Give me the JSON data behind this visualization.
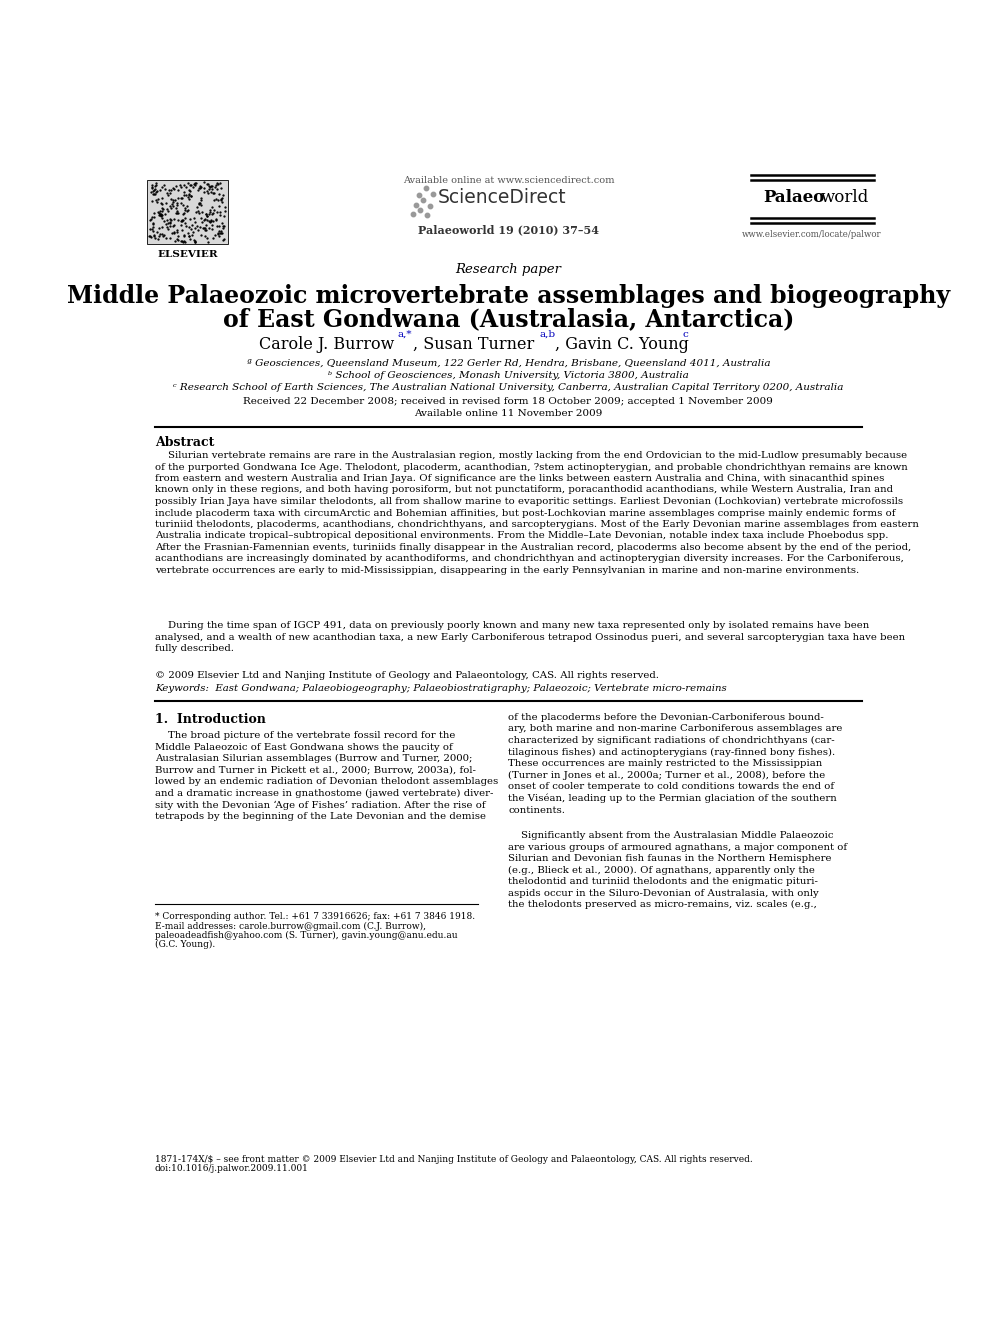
{
  "bg_color": "#ffffff",
  "available_online": "Available online at www.sciencedirect.com",
  "journal_info": "Palaeoworld 19 (2010) 37–54",
  "website": "www.elsevier.com/locate/palwor",
  "elsevier_text": "ELSEVIER",
  "paper_type": "Research paper",
  "title_line1": "Middle Palaeozoic microvertebrate assemblages and biogeography",
  "title_line2": "of East Gondwana (Australasia, Antarctica)",
  "author1": "Carole J. Burrow",
  "author1_sup": "a,*",
  "author2": ", Susan Turner",
  "author2_sup": "a,b",
  "author3": ", Gavin C. Young",
  "author3_sup": "c",
  "affil_a": "ª Geosciences, Queensland Museum, 122 Gerler Rd, Hendra, Brisbane, Queensland 4011, Australia",
  "affil_b": "ᵇ School of Geosciences, Monash University, Victoria 3800, Australia",
  "affil_c": "ᶜ Research School of Earth Sciences, The Australian National University, Canberra, Australian Capital Territory 0200, Australia",
  "received": "Received 22 December 2008; received in revised form 18 October 2009; accepted 1 November 2009",
  "available": "Available online 11 November 2009",
  "abstract_title": "Abstract",
  "abstract_p1": "    Silurian vertebrate remains are rare in the Australasian region, mostly lacking from the end Ordovician to the mid-Ludlow presumably because\nof the purported Gondwana Ice Age. Thelodont, placoderm, acanthodian, ?stem actinopterygian, and probable chondrichthyan remains are known\nfrom eastern and western Australia and Irian Jaya. Of significance are the links between eastern Australia and China, with sinacanthid spines\nknown only in these regions, and both having porosiform, but not punctatiform, poracanthodid acanthodians, while Western Australia, Iran and\npossibly Irian Jaya have similar thelodonts, all from shallow marine to evaporitic settings. Earliest Devonian (Lochkovian) vertebrate microfossils\ninclude placoderm taxa with circumArctic and Bohemian affinities, but post-Lochkovian marine assemblages comprise mainly endemic forms of\nturiniid thelodonts, placoderms, acanthodians, chondrichthyans, and sarcopterygians. Most of the Early Devonian marine assemblages from eastern\nAustralia indicate tropical–subtropical depositional environments. From the Middle–Late Devonian, notable index taxa include Phoebodus spp.\nAfter the Frasnian-Famennian events, turiniids finally disappear in the Australian record, placoderms also become absent by the end of the period,\nacanthodians are increasingly dominated by acanthodiforms, and chondrichthyan and actinopterygian diversity increases. For the Carboniferous,\nvertebrate occurrences are early to mid-Mississippian, disappearing in the early Pennsylvanian in marine and non-marine environments.",
  "abstract_p2": "    During the time span of IGCP 491, data on previously poorly known and many new taxa represented only by isolated remains have been\nanalysed, and a wealth of new acanthodian taxa, a new Early Carboniferous tetrapod Ossinodus pueri, and several sarcopterygian taxa have been\nfully described.",
  "copyright": "© 2009 Elsevier Ltd and Nanjing Institute of Geology and Palaeontology, CAS. All rights reserved.",
  "keywords": "Keywords:  East Gondwana; Palaeobiogeography; Palaeobiostratigraphy; Palaeozoic; Vertebrate micro-remains",
  "section1_title": "1.  Introduction",
  "sec1_col1_p1": "    The broad picture of the vertebrate fossil record for the\nMiddle Palaeozoic of East Gondwana shows the paucity of\nAustralasian Silurian assemblages (Burrow and Turner, 2000;\nBurrow and Turner in Pickett et al., 2000; Burrow, 2003a), fol-\nlowed by an endemic radiation of Devonian thelodont assemblages\nand a dramatic increase in gnathostome (jawed vertebrate) diver-\nsity with the Devonian ‘Age of Fishes’ radiation. After the rise of\ntetrapods by the beginning of the Late Devonian and the demise",
  "sec1_col2_p1": "of the placoderms before the Devonian-Carboniferous bound-\nary, both marine and non-marine Carboniferous assemblages are\ncharacterized by significant radiations of chondrichthyans (car-\ntilaginous fishes) and actinopterygians (ray-finned bony fishes).\nThese occurrences are mainly restricted to the Mississippian\n(Turner in Jones et al., 2000a; Turner et al., 2008), before the\nonset of cooler temperate to cold conditions towards the end of\nthe Viséan, leading up to the Permian glaciation of the southern\ncontinents.",
  "sec1_col2_p2": "    Significantly absent from the Australasian Middle Palaeozoic\nare various groups of armoured agnathans, a major component of\nSilurian and Devonian fish faunas in the Northern Hemisphere\n(e.g., Blieck et al., 2000). Of agnathans, apparently only the\nthelodontid and turiniid thelodonts and the enigmatic pituri-\naspids occur in the Siluro-Devonian of Australasia, with only\nthe thelodonts preserved as micro-remains, viz. scales (e.g.,",
  "footnote_line": "* Corresponding author. Tel.: +61 7 33916626; fax: +61 7 3846 1918.",
  "footnote_email1": "E-mail addresses: carole.burrow@gmail.com (C.J. Burrow),",
  "footnote_email2": "paleoadeadfish@yahoo.com (S. Turner), gavin.young@anu.edu.au",
  "footnote_email3": "(G.C. Young).",
  "footer_issn": "1871-174X/$ – see front matter © 2009 Elsevier Ltd and Nanjing Institute of Geology and Palaeontology, CAS. All rights reserved.",
  "footer_doi": "doi:10.1016/j.palwor.2009.11.001"
}
